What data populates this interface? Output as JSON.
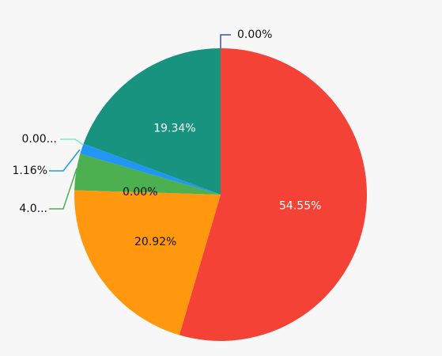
{
  "chart_data": {
    "type": "pie",
    "values": [
      54.55,
      20.92,
      0.0,
      4.03,
      1.16,
      0.0,
      19.34,
      0.0
    ],
    "value_labels": [
      "54.55%",
      "20.92%",
      "0.00%",
      "4.0...",
      "1.16%",
      "0.00...",
      "19.34%",
      "0.00%"
    ],
    "colors": [
      "#f44336",
      "#ff980f",
      "#9e9e9e",
      "#4caf50",
      "#2196f3",
      "#7de8c0",
      "#18937f",
      "#3f51b5"
    ]
  }
}
